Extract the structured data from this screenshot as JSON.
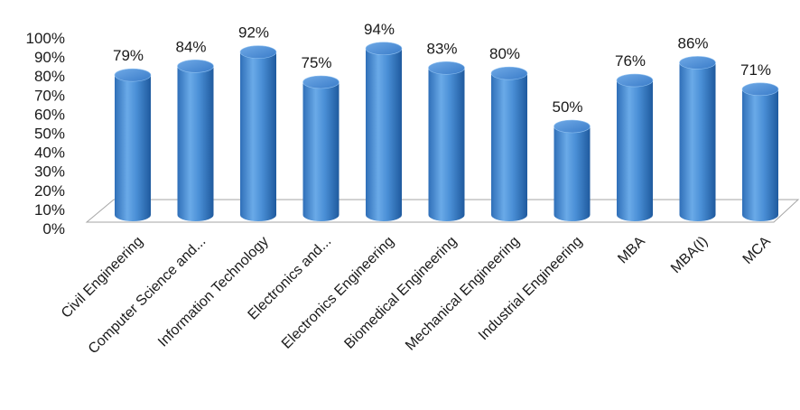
{
  "chart_data": {
    "type": "bar",
    "style": "3d-cylinder",
    "title": "",
    "xlabel": "",
    "ylabel": "",
    "ylim": [
      0,
      100
    ],
    "y_ticks": [
      "0%",
      "10%",
      "20%",
      "30%",
      "40%",
      "50%",
      "60%",
      "70%",
      "80%",
      "90%",
      "100%"
    ],
    "categories": [
      "Civil Engineering",
      "Computer Science and...",
      "Information Technology",
      "Electronics and...",
      "Electronics Engineering",
      "Biomedical Engineering",
      "Mechanical Engineering",
      "Industrial Engineering",
      "MBA",
      "MBA(I)",
      "MCA"
    ],
    "values": [
      79,
      84,
      92,
      75,
      94,
      83,
      80,
      50,
      76,
      86,
      71
    ],
    "data_labels": [
      "79%",
      "84%",
      "92%",
      "75%",
      "94%",
      "83%",
      "80%",
      "50%",
      "76%",
      "86%",
      "71%"
    ],
    "bar_color": "#4a90d9",
    "grid": false,
    "legend": "none"
  }
}
